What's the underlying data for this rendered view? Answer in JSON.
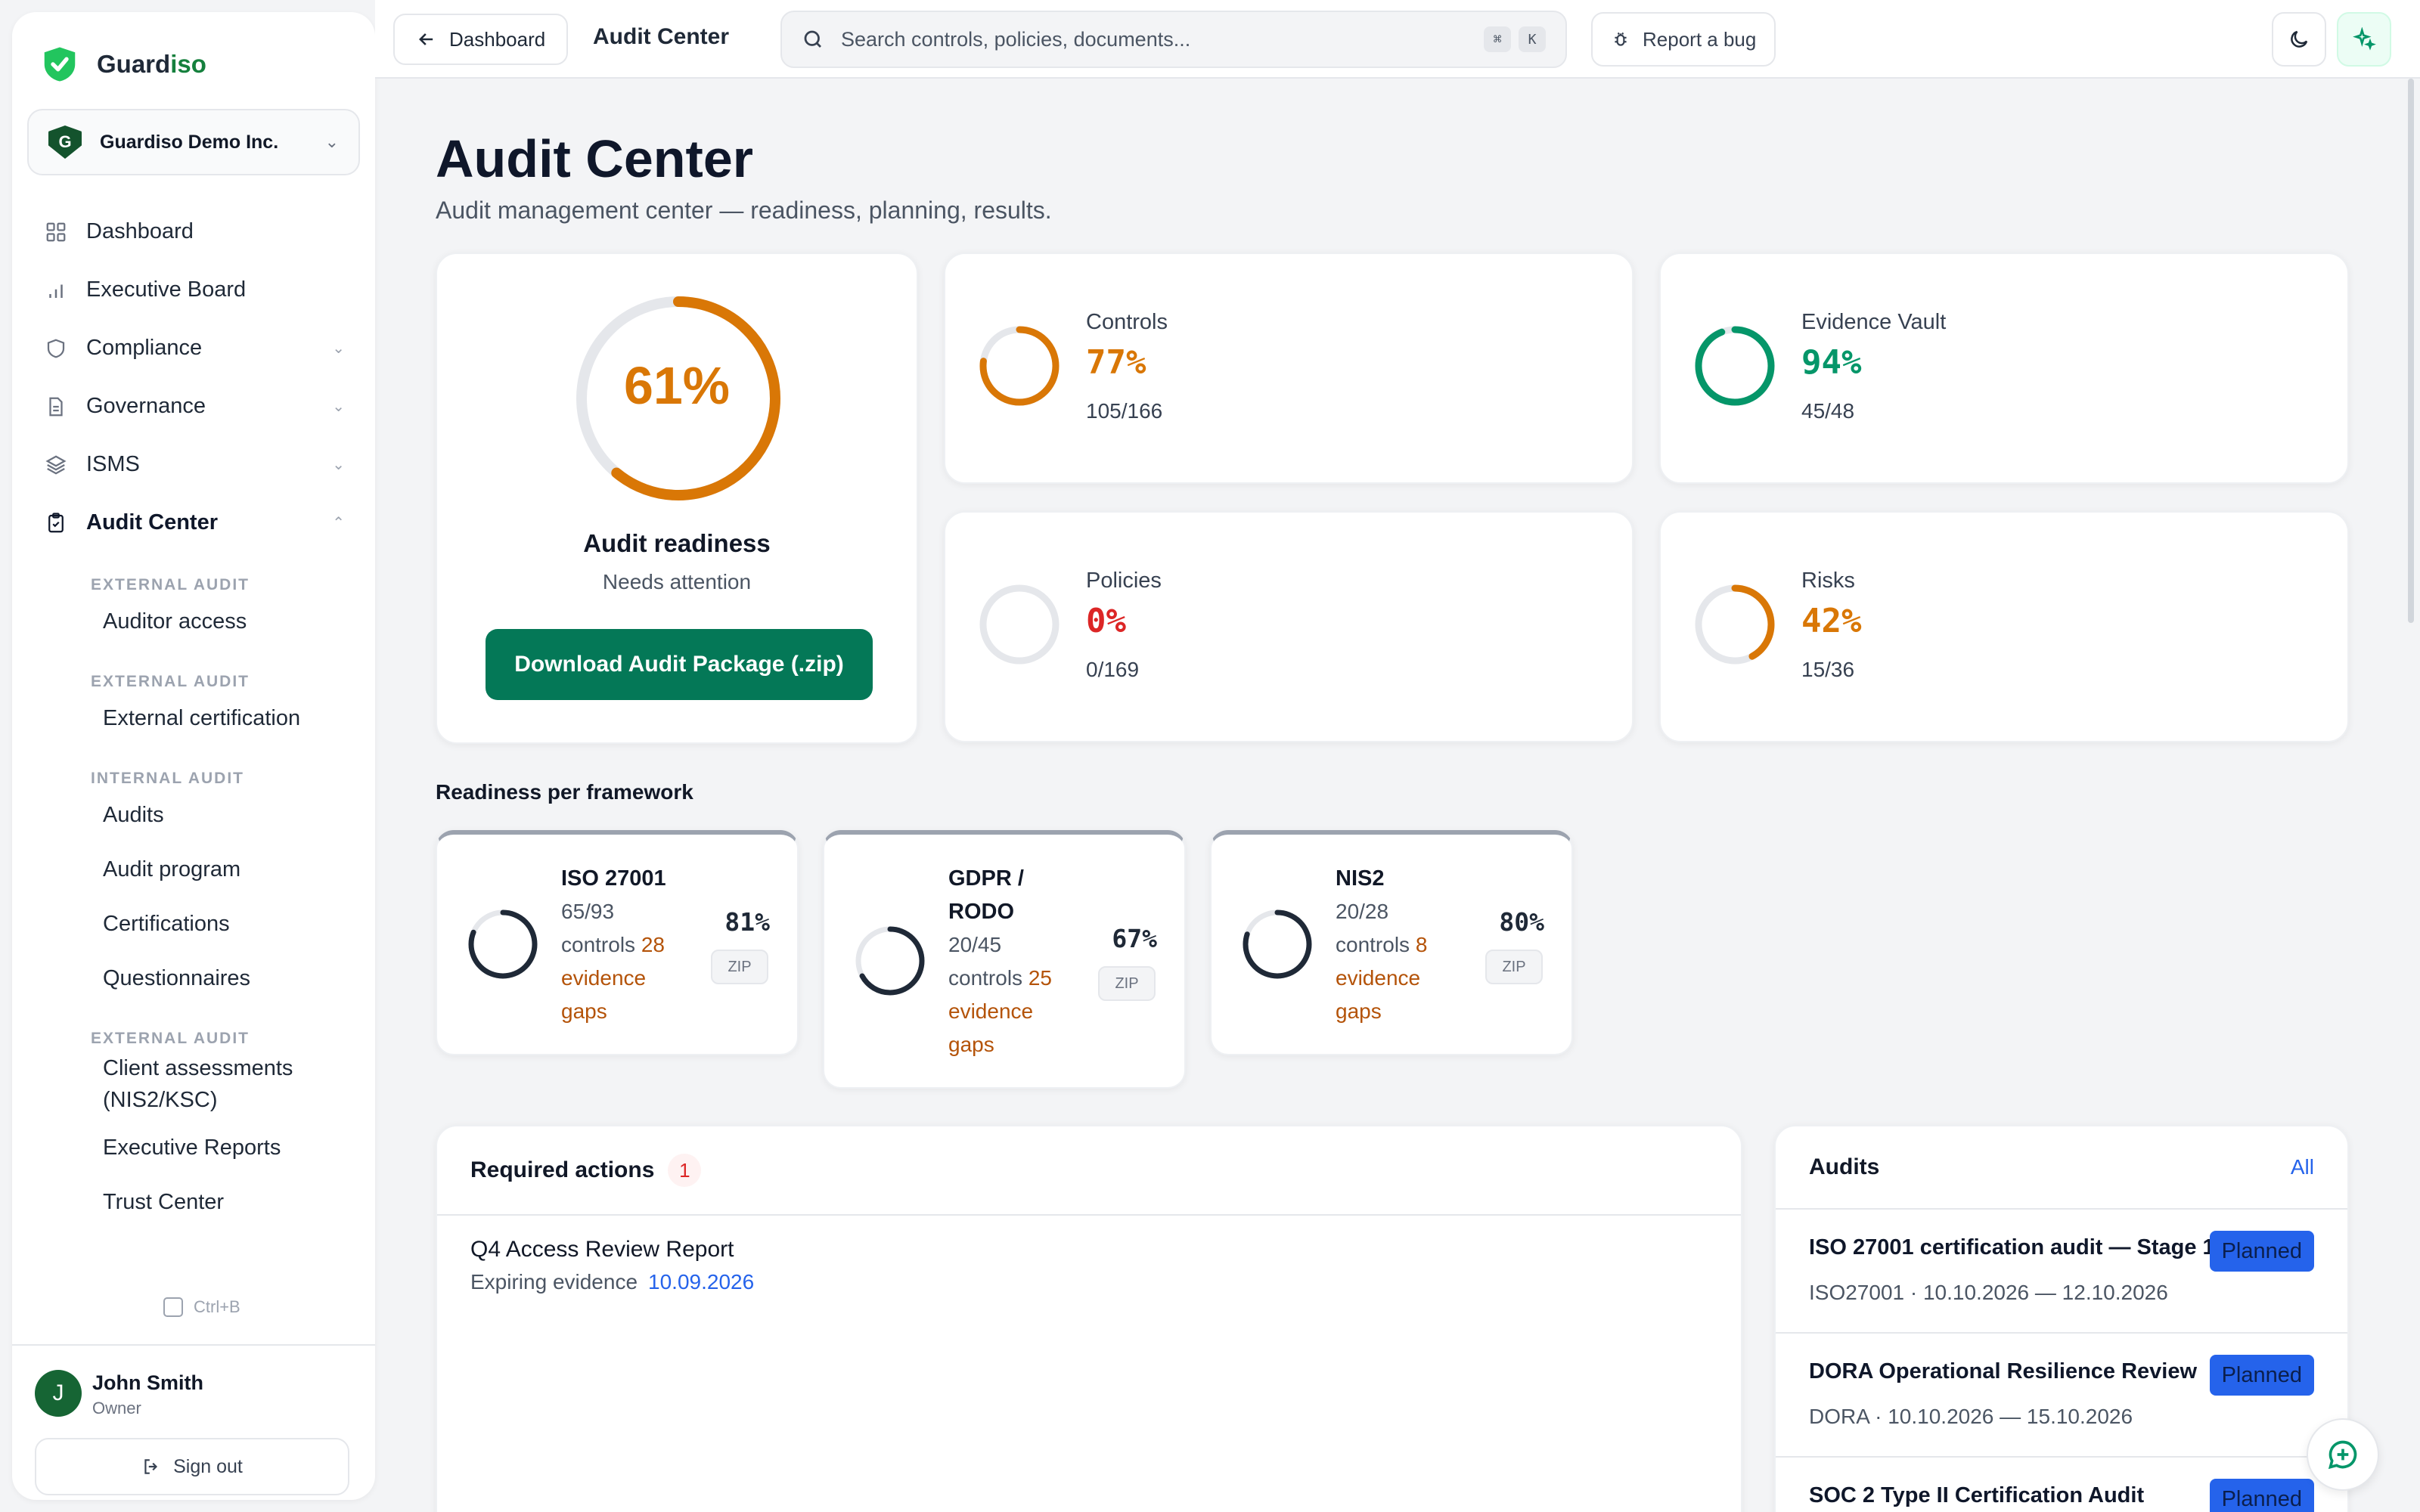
{
  "brand": {
    "prefix": "Guard",
    "suffix": "iso"
  },
  "org": {
    "initial": "G",
    "name": "Guardiso Demo Inc."
  },
  "nav": {
    "dashboard": "Dashboard",
    "executive": "Executive Board",
    "compliance": "Compliance",
    "governance": "Governance",
    "isms": "ISMS",
    "audit_center": "Audit Center"
  },
  "subnav": {
    "s1": "EXTERNAL AUDIT",
    "auditor_access": "Auditor access",
    "s2": "EXTERNAL AUDIT",
    "external_cert": "External certification",
    "s3": "INTERNAL AUDIT",
    "audits": "Audits",
    "audit_program": "Audit program",
    "certifications": "Certifications",
    "questionnaires": "Questionnaires",
    "s4": "EXTERNAL AUDIT",
    "client_assessments_1": "Client assessments",
    "client_assessments_2": "(NIS2/KSC)",
    "exec_reports": "Executive Reports",
    "trust_center": "Trust Center"
  },
  "collapse_hint": "Ctrl+B",
  "user": {
    "initial": "J",
    "name": "John Smith",
    "role": "Owner",
    "signout": "Sign out"
  },
  "topbar": {
    "back": "Dashboard",
    "crumb": "Audit Center",
    "search_placeholder": "Search controls, policies, documents...",
    "kbd1": "⌘",
    "kbd2": "K",
    "bug": "Report a bug"
  },
  "page": {
    "title": "Audit Center",
    "subtitle": "Audit management center — readiness, planning, results."
  },
  "readiness": {
    "percent": "61%",
    "value": 0.61,
    "title": "Audit readiness",
    "status": "Needs attention",
    "download": "Download Audit Package (.zip)",
    "color": "#d97706"
  },
  "stats": [
    {
      "label": "Controls",
      "value": "77%",
      "frac": 0.77,
      "count": "105/166",
      "color": "#d97706"
    },
    {
      "label": "Evidence Vault",
      "value": "94%",
      "frac": 0.94,
      "count": "45/48",
      "color": "#059669"
    },
    {
      "label": "Policies",
      "value": "0%",
      "frac": 0,
      "count": "0/169",
      "color": "#dc2626"
    },
    {
      "label": "Risks",
      "value": "42%",
      "frac": 0.42,
      "count": "15/36",
      "color": "#d97706"
    }
  ],
  "frameworks_title": "Readiness per framework",
  "frameworks": [
    {
      "name": "ISO 27001",
      "controls": "65/93",
      "controls_word": "controls",
      "gaps": "28",
      "gaps_word": "evidence",
      "gaps_word2": "gaps",
      "percent": "81%",
      "zip": "ZIP",
      "frac": 0.81
    },
    {
      "name1": "GDPR /",
      "name2": "RODO",
      "controls": "20/45",
      "controls_word": "controls",
      "gaps": "25",
      "gaps_word": "evidence",
      "gaps_word2": "gaps",
      "percent": "67%",
      "zip": "ZIP",
      "frac": 0.67
    },
    {
      "name": "NIS2",
      "controls": "20/28",
      "controls_word": "controls",
      "gaps": "8",
      "gaps_word": "evidence",
      "gaps_word2": "gaps",
      "percent": "80%",
      "zip": "ZIP",
      "frac": 0.8
    }
  ],
  "required": {
    "title": "Required actions",
    "count": "1",
    "item_title": "Q4 Access Review Report",
    "item_label": "Expiring evidence",
    "item_date": "10.09.2026"
  },
  "audits": {
    "title": "Audits",
    "all": "All",
    "rows": [
      {
        "title": "ISO 27001 certification audit — Stage 1",
        "meta": "ISO27001 · 10.10.2026 — 12.10.2026",
        "status": "Planned"
      },
      {
        "title": "DORA Operational Resilience Review",
        "meta": "DORA · 10.10.2026 — 15.10.2026",
        "status": "Planned"
      },
      {
        "title": "SOC 2 Type II Certification Audit",
        "meta": "",
        "status": "Planned"
      }
    ]
  }
}
